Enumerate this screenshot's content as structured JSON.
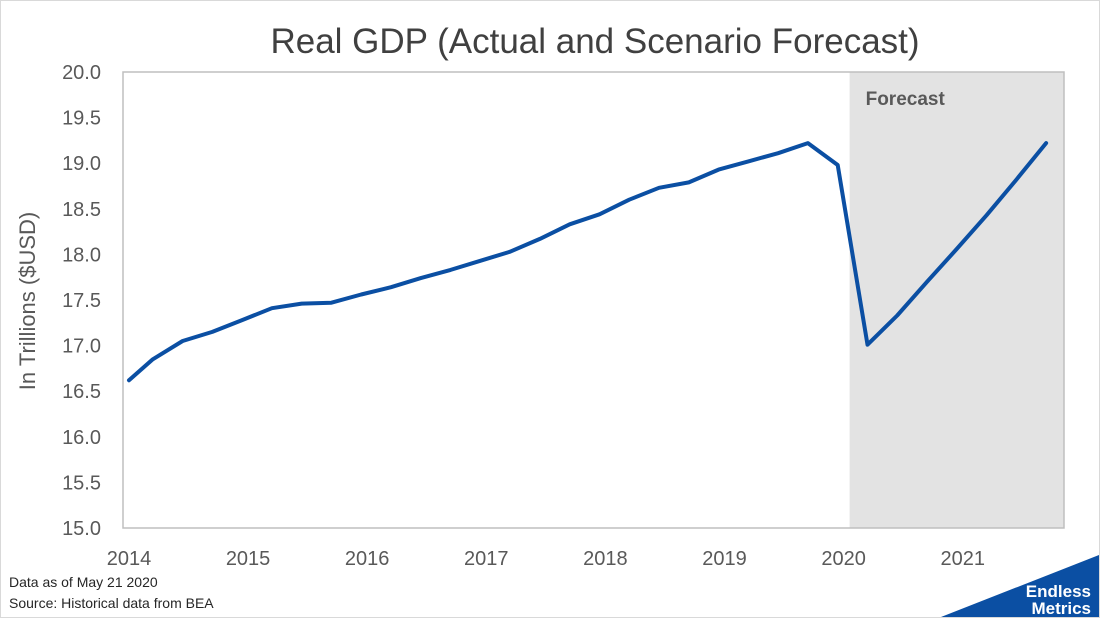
{
  "footer": {
    "data_date": "Data as of May 21 2020",
    "source": "Source: Historical data from BEA"
  },
  "logo": {
    "line1": "Endless",
    "line2": "Metrics",
    "color": "#0b4fa3"
  },
  "chart_data": {
    "type": "line",
    "title": "Real GDP (Actual and Scenario Forecast)",
    "xlabel": "",
    "ylabel": "In Trillions ($USD)",
    "ylim": [
      15.0,
      20.0
    ],
    "xlim": [
      2014.0,
      2021.9
    ],
    "y_ticks": [
      "15.0",
      "15.5",
      "16.0",
      "16.5",
      "17.0",
      "17.5",
      "18.0",
      "18.5",
      "19.0",
      "19.5",
      "20.0"
    ],
    "x_ticks": [
      "2014",
      "2015",
      "2016",
      "2017",
      "2018",
      "2019",
      "2020",
      "2021"
    ],
    "grid": false,
    "forecast_region": {
      "label": "Forecast",
      "start": 2020.1,
      "end": 2021.9,
      "color": "#e3e3e3"
    },
    "line_color": "#0b4fa3",
    "series": [
      {
        "x": [
          2014.05,
          2014.25,
          2014.5,
          2014.75,
          2015.0,
          2015.25,
          2015.5,
          2015.75,
          2016.0,
          2016.25,
          2016.5,
          2016.75,
          2017.0,
          2017.25,
          2017.5,
          2017.75,
          2018.0,
          2018.25,
          2018.5,
          2018.75,
          2019.0,
          2019.25,
          2019.5,
          2019.75,
          2020.0,
          2020.25,
          2020.5,
          2020.75,
          2021.0,
          2021.25,
          2021.5,
          2021.75
        ],
        "values": [
          16.62,
          16.85,
          17.05,
          17.15,
          17.28,
          17.41,
          17.46,
          17.47,
          17.56,
          17.64,
          17.74,
          17.83,
          17.93,
          18.03,
          18.17,
          18.33,
          18.44,
          18.6,
          18.73,
          18.79,
          18.93,
          19.02,
          19.11,
          19.22,
          18.98,
          17.01,
          17.33,
          17.7,
          18.06,
          18.43,
          18.82,
          19.22
        ]
      }
    ]
  }
}
